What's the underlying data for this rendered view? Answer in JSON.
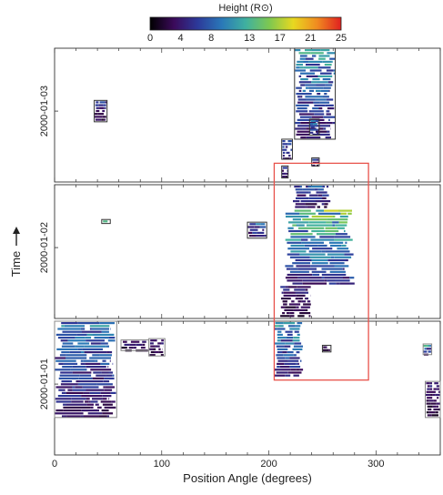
{
  "chart_data": {
    "type": "heatmap",
    "title": "",
    "colorbar": {
      "label": "Height (R⊙)",
      "ticks": [
        0,
        4,
        8,
        13,
        17,
        21,
        25
      ],
      "range": [
        0,
        25
      ],
      "colors": [
        "#000000",
        "#3b0a5a",
        "#2c3a9a",
        "#2a78b8",
        "#3fb0a0",
        "#7ec850",
        "#e8d820",
        "#f08a20",
        "#e02020"
      ]
    },
    "xlabel": "Position Angle (degrees)",
    "xlim": [
      0,
      360
    ],
    "xticks": [
      0,
      100,
      200,
      300
    ],
    "ylabel": "Time",
    "panels": [
      {
        "ytick": "2000-01-03"
      },
      {
        "ytick": "2000-01-02"
      },
      {
        "ytick": "2000-01-01"
      }
    ],
    "regions": [
      {
        "panel": 0,
        "pa": [
          224,
          262
        ],
        "y": [
          0.0,
          0.68
        ],
        "intensity": 0.35,
        "box": "#333333"
      },
      {
        "panel": 0,
        "pa": [
          37,
          49
        ],
        "y": [
          0.39,
          0.55
        ],
        "intensity": 0.2,
        "box": "#333333"
      },
      {
        "panel": 0,
        "pa": [
          238,
          247
        ],
        "y": [
          0.53,
          0.65
        ],
        "intensity": 0.3,
        "box": "#333333"
      },
      {
        "panel": 0,
        "pa": [
          212,
          222
        ],
        "y": [
          0.68,
          0.83
        ],
        "intensity": 0.25,
        "box": "#333333"
      },
      {
        "panel": 0,
        "pa": [
          240,
          247
        ],
        "y": [
          0.82,
          0.88
        ],
        "intensity": 0.25,
        "box": "#333333"
      },
      {
        "panel": 0,
        "pa": [
          212,
          218
        ],
        "y": [
          0.88,
          0.97
        ],
        "intensity": 0.2,
        "box": "#333333"
      },
      {
        "panel": 1,
        "pa": [
          44,
          52
        ],
        "y": [
          0.26,
          0.29
        ],
        "intensity": 0.4,
        "box": "#333333"
      },
      {
        "panel": 1,
        "pa": [
          180,
          198
        ],
        "y": [
          0.28,
          0.4
        ],
        "intensity": 0.3,
        "box": "#333333"
      },
      {
        "panel": 1,
        "pa": [
          222,
          258
        ],
        "y": [
          0.0,
          0.18
        ],
        "intensity": 0.25,
        "box": null
      },
      {
        "panel": 1,
        "pa": [
          215,
          280
        ],
        "y": [
          0.18,
          0.75
        ],
        "intensity": 0.45,
        "box": null
      },
      {
        "panel": 1,
        "pa": [
          210,
          240
        ],
        "y": [
          0.75,
          1.0
        ],
        "intensity": 0.15,
        "box": null
      },
      {
        "panel": 2,
        "pa": [
          0,
          58
        ],
        "y": [
          0.0,
          0.72
        ],
        "intensity": 0.3,
        "box": "#888888"
      },
      {
        "panel": 2,
        "pa": [
          62,
          88
        ],
        "y": [
          0.14,
          0.22
        ],
        "intensity": 0.15,
        "box": "#888888"
      },
      {
        "panel": 2,
        "pa": [
          88,
          103
        ],
        "y": [
          0.13,
          0.26
        ],
        "intensity": 0.15,
        "box": "#888888"
      },
      {
        "panel": 2,
        "pa": [
          205,
          232
        ],
        "y": [
          0.0,
          0.42
        ],
        "intensity": 0.35,
        "box": null
      },
      {
        "panel": 2,
        "pa": [
          250,
          258
        ],
        "y": [
          0.18,
          0.23
        ],
        "intensity": 0.1,
        "box": "#333333"
      },
      {
        "panel": 2,
        "pa": [
          346,
          360
        ],
        "y": [
          0.45,
          0.72
        ],
        "intensity": 0.15,
        "box": "#888888"
      },
      {
        "panel": 2,
        "pa": [
          344,
          352
        ],
        "y": [
          0.17,
          0.25
        ],
        "intensity": 0.35,
        "box": "#888888"
      }
    ],
    "highlight_box": {
      "panels": [
        0,
        2
      ],
      "pa": [
        205,
        293
      ],
      "color": "#e8514a"
    }
  }
}
